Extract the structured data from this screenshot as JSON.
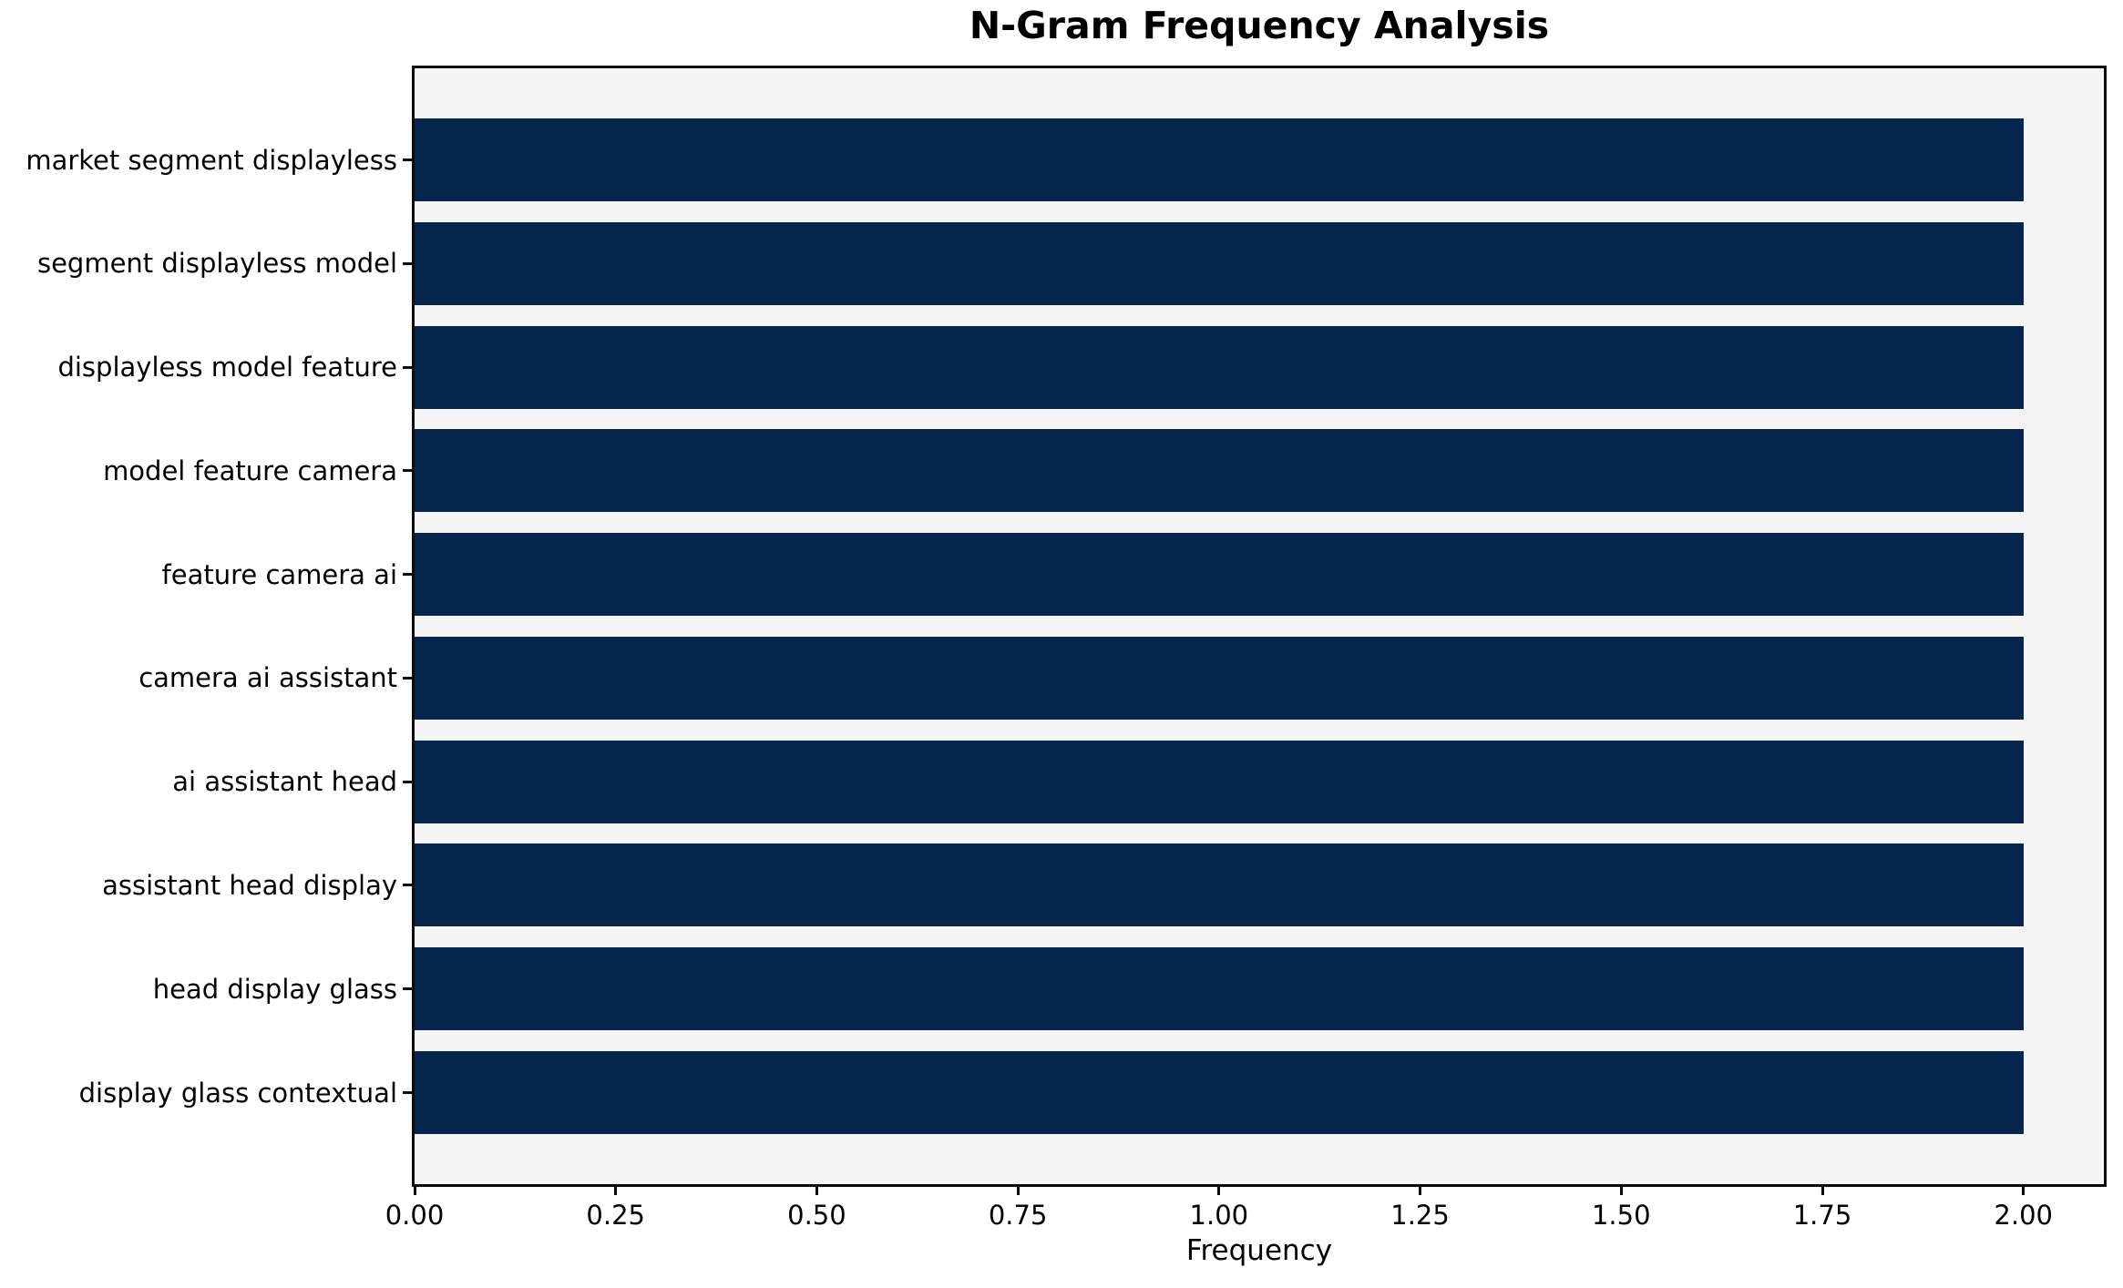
{
  "title": "N-Gram Frequency Analysis",
  "colors": {
    "bar": "#06264d",
    "plot_background": "#f5f5f5",
    "figure_background": "#ffffff",
    "spine": "#0b0b0b",
    "text": "#000000"
  },
  "chart_data": {
    "type": "bar",
    "orientation": "horizontal",
    "title": "N-Gram Frequency Analysis",
    "categories": [
      "market segment displayless",
      "segment displayless model",
      "displayless model feature",
      "model feature camera",
      "feature camera ai",
      "camera ai assistant",
      "ai assistant head",
      "assistant head display",
      "head display glass",
      "display glass contextual"
    ],
    "values": [
      2,
      2,
      2,
      2,
      2,
      2,
      2,
      2,
      2,
      2
    ],
    "xlabel": "Frequency",
    "ylabel": "",
    "xlim": [
      0,
      2.1
    ],
    "xticks": [
      0,
      0.25,
      0.5,
      0.75,
      1.0,
      1.25,
      1.5,
      1.75,
      2.0
    ],
    "xtick_labels": [
      "0.00",
      "0.25",
      "0.50",
      "0.75",
      "1.00",
      "1.25",
      "1.50",
      "1.75",
      "2.00"
    ],
    "grid": false,
    "legend": null
  }
}
